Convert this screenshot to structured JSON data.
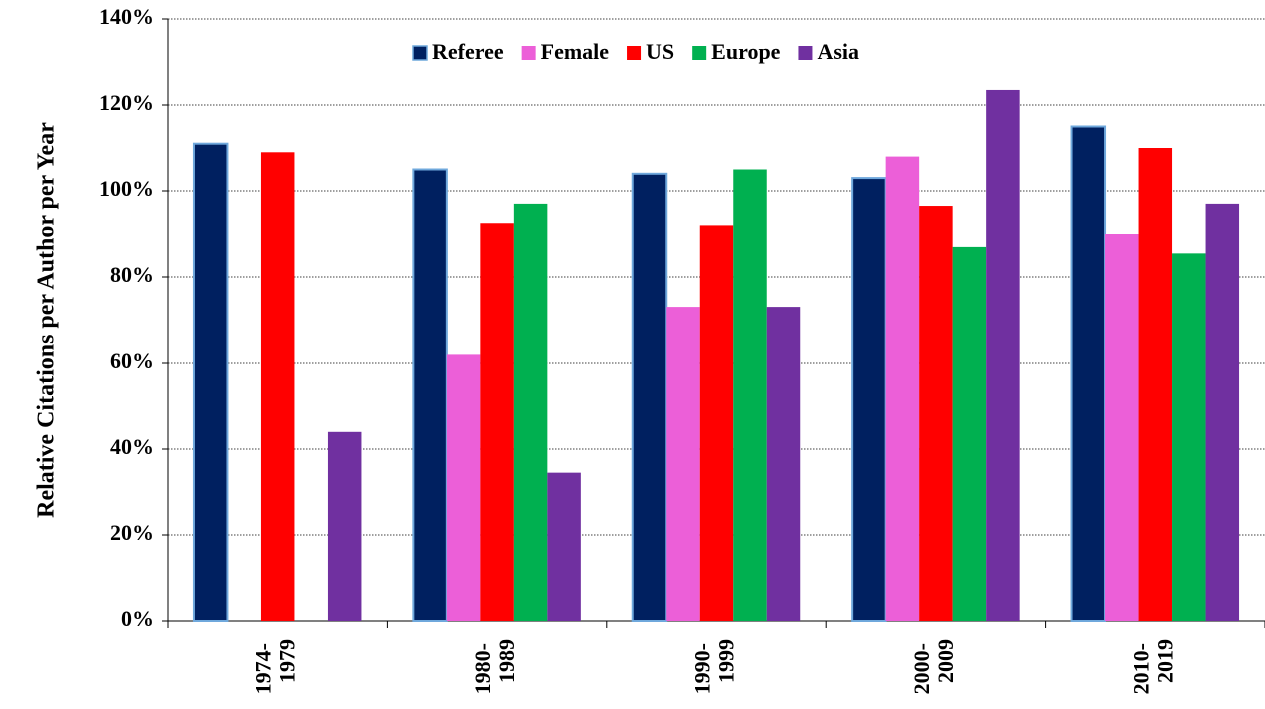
{
  "chart_data": {
    "type": "bar",
    "y_label": "Relative Citations per Author per Year",
    "categories": [
      "1974-1979",
      "1980-1989",
      "1990-1999",
      "2000-2009",
      "2010-2019"
    ],
    "series": [
      {
        "name": "Referee",
        "color": "#002060",
        "values": [
          111,
          105,
          104,
          103,
          115
        ]
      },
      {
        "name": "Female",
        "color": "#ec5fd8",
        "values": [
          null,
          62,
          73,
          108,
          90
        ]
      },
      {
        "name": "US",
        "color": "#ff0000",
        "values": [
          109,
          92.5,
          92,
          96.5,
          110
        ]
      },
      {
        "name": "Europe",
        "color": "#00b050",
        "values": [
          null,
          97,
          105,
          87,
          85.5
        ]
      },
      {
        "name": "Asia",
        "color": "#7030a0",
        "values": [
          44,
          34.5,
          73,
          123.5,
          97
        ]
      }
    ],
    "ylim": [
      0,
      140
    ],
    "yticks": [
      {
        "value": 0,
        "label": "0%"
      },
      {
        "value": 20,
        "label": "20%"
      },
      {
        "value": 40,
        "label": "40%"
      },
      {
        "value": 60,
        "label": "60%"
      },
      {
        "value": 80,
        "label": "80%"
      },
      {
        "value": 100,
        "label": "100%"
      },
      {
        "value": 120,
        "label": "120%"
      },
      {
        "value": 140,
        "label": "140%"
      }
    ],
    "grid": true
  }
}
